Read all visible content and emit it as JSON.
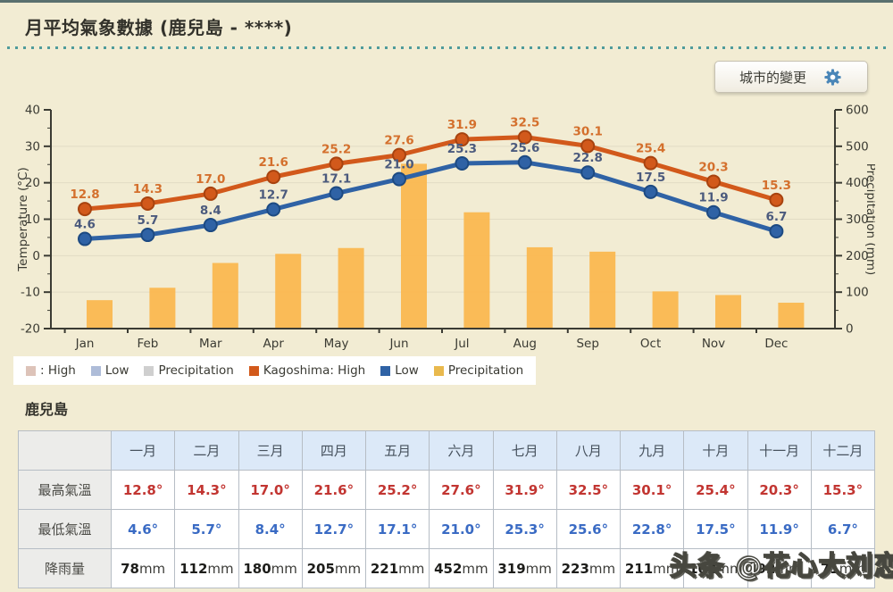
{
  "header": {
    "title": "月平均氣象數據 (鹿兒島 - ****)",
    "change_city_button": "城市的變更"
  },
  "chart_data": {
    "type": "line+bar",
    "categories": [
      "Jan",
      "Feb",
      "Mar",
      "Apr",
      "May",
      "Jun",
      "Jul",
      "Aug",
      "Sep",
      "Oct",
      "Nov",
      "Dec"
    ],
    "series": [
      {
        "key": "high",
        "name": "Kagoshima: High",
        "type": "line",
        "unit": "°C",
        "color": "#d2591b",
        "edge": "#a8430f",
        "label_color": "#d4702d",
        "values": [
          12.8,
          14.3,
          17.0,
          21.6,
          25.2,
          27.6,
          31.9,
          32.5,
          30.1,
          25.4,
          20.3,
          15.3
        ]
      },
      {
        "key": "low",
        "name": "Kagoshima: Low",
        "type": "line",
        "unit": "°C",
        "color": "#2f62a5",
        "edge": "#1d4a82",
        "label_color": "#4b5a7d",
        "values": [
          4.6,
          5.7,
          8.4,
          12.7,
          17.1,
          21.0,
          25.3,
          25.6,
          22.8,
          17.5,
          11.9,
          6.7
        ]
      },
      {
        "key": "precip",
        "name": "Kagoshima: Precipitation",
        "type": "bar",
        "unit": "mm",
        "color": "#fbb74e",
        "values": [
          78,
          112,
          180,
          205,
          221,
          452,
          319,
          223,
          211,
          102,
          92,
          71
        ]
      }
    ],
    "left_axis": {
      "label": "Temperature (°C)",
      "min": -20,
      "max": 40,
      "step": 10
    },
    "right_axis": {
      "label": "Precipitation (mm)",
      "min": 0,
      "max": 600,
      "step": 100
    },
    "grid": true,
    "legend_position": "bottom-left"
  },
  "legend": {
    "items": [
      {
        "label": ": High",
        "color": "#ddc3b9"
      },
      {
        "label": "Low",
        "color": "#aebcd8"
      },
      {
        "label": "Precipitation",
        "color": "#cfcfcf"
      },
      {
        "label": "Kagoshima: High",
        "color": "#d2591b"
      },
      {
        "label": "Low",
        "color": "#2f62a5"
      },
      {
        "label": "Precipitation",
        "color": "#e9b94d"
      }
    ]
  },
  "table": {
    "title": "鹿兒島",
    "month_headers": [
      "一月",
      "二月",
      "三月",
      "四月",
      "五月",
      "六月",
      "七月",
      "八月",
      "九月",
      "十月",
      "十一月",
      "十二月"
    ],
    "rows": [
      {
        "label": "最高氣溫",
        "style": "high",
        "values": [
          "12.8°",
          "14.3°",
          "17.0°",
          "21.6°",
          "25.2°",
          "27.6°",
          "31.9°",
          "32.5°",
          "30.1°",
          "25.4°",
          "20.3°",
          "15.3°"
        ]
      },
      {
        "label": "最低氣溫",
        "style": "low",
        "values": [
          "4.6°",
          "5.7°",
          "8.4°",
          "12.7°",
          "17.1°",
          "21.0°",
          "25.3°",
          "25.6°",
          "22.8°",
          "17.5°",
          "11.9°",
          "6.7°"
        ]
      },
      {
        "label": "降雨量",
        "style": "precip",
        "unit": "mm",
        "values": [
          "78",
          "112",
          "180",
          "205",
          "221",
          "452",
          "319",
          "223",
          "211",
          "102",
          "92",
          "71"
        ]
      }
    ]
  },
  "watermark": "头条 @花心大刘恋",
  "colors": {
    "page_bg": "#f2ecd3",
    "dotted_rule": "#4f9b9b",
    "grid_line": "#e2dcc4",
    "axis": "#3b3b33",
    "table_header_bg": "#dce9f8",
    "high_value_text": "#c23531",
    "low_value_text": "#3a6bc4",
    "gear_icon": "#4a86b8"
  }
}
